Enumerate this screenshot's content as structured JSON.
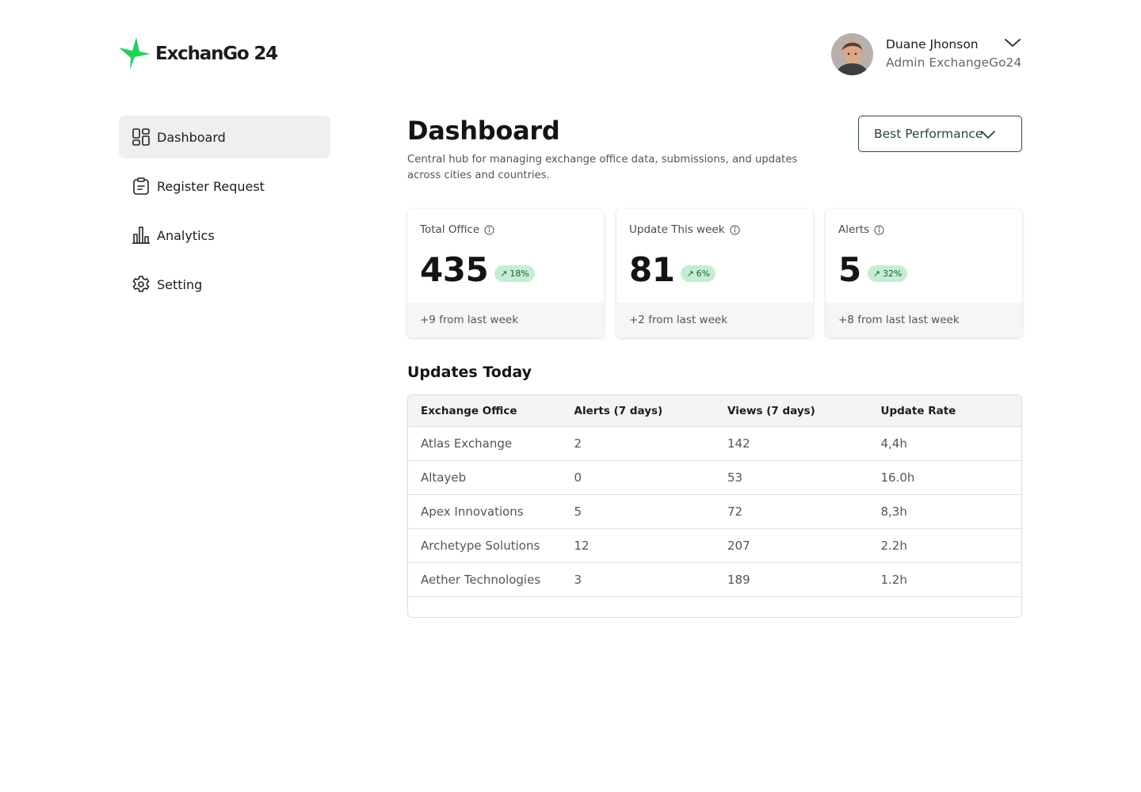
{
  "brand": {
    "name": "ExchanGo 24",
    "accent": "#22d15a"
  },
  "user": {
    "name": "Duane Jhonson",
    "role": "Admin ExchangeGo24"
  },
  "sidebar": {
    "items": [
      {
        "label": "Dashboard",
        "icon": "dashboard-grid-icon",
        "active": true
      },
      {
        "label": "Register Request",
        "icon": "clipboard-icon",
        "active": false
      },
      {
        "label": "Analytics",
        "icon": "bar-chart-icon",
        "active": false
      },
      {
        "label": "Setting",
        "icon": "gear-icon",
        "active": false
      }
    ]
  },
  "header": {
    "title": "Dashboard",
    "description": "Central hub for managing exchange office data, submissions, and updates across cities and countries.",
    "filter_label": "Best Performance"
  },
  "stats": [
    {
      "title": "Total Office",
      "value": "435",
      "change": "18%",
      "footer": "+9 from last week"
    },
    {
      "title": "Update This week",
      "value": "81",
      "change": "6%",
      "footer": "+2 from last week"
    },
    {
      "title": "Alerts",
      "value": "5",
      "change": "32%",
      "footer": "+8 from last last week"
    }
  ],
  "updates": {
    "title": "Updates Today",
    "columns": [
      "Exchange Office",
      "Alerts (7 days)",
      "Views (7 days)",
      "Update Rate"
    ],
    "rows": [
      [
        "Atlas Exchange",
        "2",
        "142",
        "4,4h"
      ],
      [
        "Altayeb",
        "0",
        "53",
        "16.0h"
      ],
      [
        "Apex Innovations",
        "5",
        "72",
        "8,3h"
      ],
      [
        "Archetype Solutions",
        "12",
        "207",
        "2.2h"
      ],
      [
        "Aether Technologies",
        "3",
        "189",
        "1.2h"
      ]
    ]
  }
}
